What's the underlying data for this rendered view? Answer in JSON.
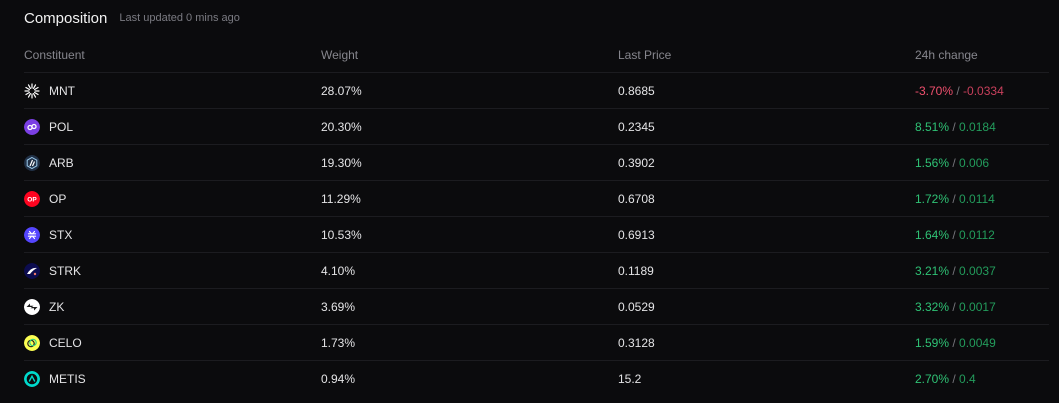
{
  "header": {
    "title": "Composition",
    "updated": "Last updated 0 mins ago"
  },
  "columns": [
    "Constituent",
    "Weight",
    "Last Price",
    "24h change"
  ],
  "rows": [
    {
      "symbol": "MNT",
      "weight": "28.07%",
      "price": "0.8685",
      "pct": "-3.70%",
      "abs": "-0.0334",
      "dir": "neg",
      "icon": "mnt-icon",
      "color": "#ffffff"
    },
    {
      "symbol": "POL",
      "weight": "20.30%",
      "price": "0.2345",
      "pct": "8.51%",
      "abs": "0.0184",
      "dir": "pos",
      "icon": "pol-icon",
      "color": "#7b3fe4"
    },
    {
      "symbol": "ARB",
      "weight": "19.30%",
      "price": "0.3902",
      "pct": "1.56%",
      "abs": "0.006",
      "dir": "pos",
      "icon": "arb-icon",
      "color": "#213147"
    },
    {
      "symbol": "OP",
      "weight": "11.29%",
      "price": "0.6708",
      "pct": "1.72%",
      "abs": "0.0114",
      "dir": "pos",
      "icon": "op-icon",
      "color": "#ff0420"
    },
    {
      "symbol": "STX",
      "weight": "10.53%",
      "price": "0.6913",
      "pct": "1.64%",
      "abs": "0.0112",
      "dir": "pos",
      "icon": "stx-icon",
      "color": "#5546ff"
    },
    {
      "symbol": "STRK",
      "weight": "4.10%",
      "price": "0.1189",
      "pct": "3.21%",
      "abs": "0.0037",
      "dir": "pos",
      "icon": "strk-icon",
      "color": "#0c0c4f"
    },
    {
      "symbol": "ZK",
      "weight": "3.69%",
      "price": "0.0529",
      "pct": "3.32%",
      "abs": "0.0017",
      "dir": "pos",
      "icon": "zk-icon",
      "color": "#ffffff"
    },
    {
      "symbol": "CELO",
      "weight": "1.73%",
      "price": "0.3128",
      "pct": "1.59%",
      "abs": "0.0049",
      "dir": "pos",
      "icon": "celo-icon",
      "color": "#fcff52"
    },
    {
      "symbol": "METIS",
      "weight": "0.94%",
      "price": "15.2",
      "pct": "2.70%",
      "abs": "0.4",
      "dir": "pos",
      "icon": "metis-icon",
      "color": "#00dacc"
    }
  ]
}
